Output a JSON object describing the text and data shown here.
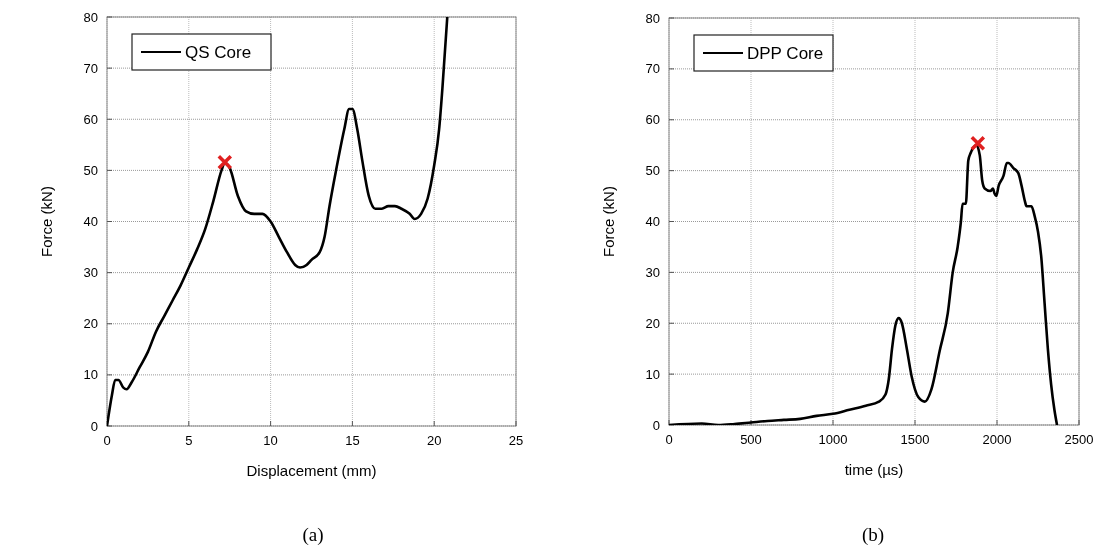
{
  "chart_data": [
    {
      "type": "line",
      "xlabel": "Displacement (mm)",
      "ylabel": "Force (kN)",
      "annotations": [
        "(a)"
      ],
      "xlim": [
        0,
        25
      ],
      "ylim": [
        0,
        80
      ],
      "xticks": [
        0,
        5,
        10,
        15,
        20,
        25
      ],
      "yticks": [
        0,
        10,
        20,
        30,
        40,
        50,
        60,
        70,
        80
      ],
      "grid": true,
      "legend": "top left",
      "line_style": "solid",
      "series": [
        {
          "name": "QS Core",
          "color": "#000000",
          "x": [
            0,
            0.3,
            0.5,
            0.7,
            1.0,
            1.2,
            1.5,
            2,
            2.5,
            3,
            3.5,
            4,
            4.5,
            5,
            5.5,
            6,
            6.5,
            7,
            7.2,
            7.5,
            8,
            8.5,
            9,
            9.5,
            10,
            10.5,
            11,
            11.5,
            11.8,
            12.2,
            12.5,
            13,
            13.3,
            13.6,
            14,
            14.5,
            14.8,
            15,
            15.3,
            15.6,
            16,
            16.4,
            16.8,
            17.2,
            17.6,
            18,
            18.5,
            18.8,
            19.2,
            19.6,
            20,
            20.3,
            20.5,
            20.8
          ],
          "values": [
            0,
            6,
            9,
            9,
            7.5,
            7.2,
            8.5,
            11.5,
            14.5,
            18.5,
            21.5,
            24.5,
            27.5,
            31,
            34.5,
            38.5,
            44,
            50,
            51.5,
            50.5,
            45,
            42,
            41.5,
            41.5,
            40,
            37,
            34,
            31.5,
            31,
            31.5,
            32.5,
            34,
            37,
            43,
            50,
            58,
            62,
            62,
            58,
            52,
            45,
            42.5,
            42.5,
            43,
            43,
            42.5,
            41.5,
            40.5,
            41.5,
            44.5,
            51,
            58,
            66,
            80
          ]
        },
        {
          "type": "scatter",
          "marker": "cross",
          "color": "#e02020",
          "x": [
            7.2
          ],
          "values": [
            51.6
          ]
        }
      ]
    },
    {
      "type": "line",
      "xlabel": "time (µs)",
      "ylabel": "Force (kN)",
      "annotations": [
        "(b)"
      ],
      "xlim": [
        0,
        2500
      ],
      "ylim": [
        0,
        80
      ],
      "xticks": [
        0,
        500,
        1000,
        1500,
        2000,
        2500
      ],
      "yticks": [
        0,
        10,
        20,
        30,
        40,
        50,
        60,
        70,
        80
      ],
      "grid": true,
      "legend": "top left",
      "line_style": "solid",
      "series": [
        {
          "name": "DPP Core",
          "color": "#000000",
          "x": [
            0,
            200,
            300,
            400,
            500,
            600,
            700,
            800,
            900,
            1000,
            1100,
            1200,
            1280,
            1320,
            1340,
            1360,
            1380,
            1400,
            1420,
            1450,
            1480,
            1520,
            1560,
            1600,
            1650,
            1700,
            1730,
            1760,
            1780,
            1790,
            1810,
            1825,
            1840,
            1855,
            1875,
            1895,
            1910,
            1925,
            1960,
            1975,
            1985,
            1995,
            2010,
            2040,
            2060,
            2070,
            2100,
            2130,
            2150,
            2170,
            2180,
            2210,
            2230,
            2250,
            2270,
            2290,
            2310,
            2330,
            2350,
            2366
          ],
          "values": [
            0,
            0.3,
            0,
            0.2,
            0.5,
            0.8,
            1,
            1.2,
            1.8,
            2.2,
            3,
            3.8,
            4.6,
            6,
            9,
            15,
            19.5,
            21,
            20,
            15,
            9.5,
            5.5,
            4.6,
            7,
            14.5,
            22,
            30,
            35,
            40,
            43.5,
            43.5,
            52,
            53.5,
            54.5,
            55,
            53,
            48,
            46.5,
            46,
            46.5,
            45.5,
            45,
            47,
            49,
            51.5,
            51.5,
            50.5,
            49.5,
            47,
            44,
            43,
            43,
            41,
            38,
            33,
            24,
            15,
            8,
            3,
            0
          ]
        },
        {
          "type": "scatter",
          "marker": "cross",
          "color": "#e02020",
          "x": [
            1883
          ],
          "values": [
            55.4
          ]
        }
      ]
    }
  ]
}
